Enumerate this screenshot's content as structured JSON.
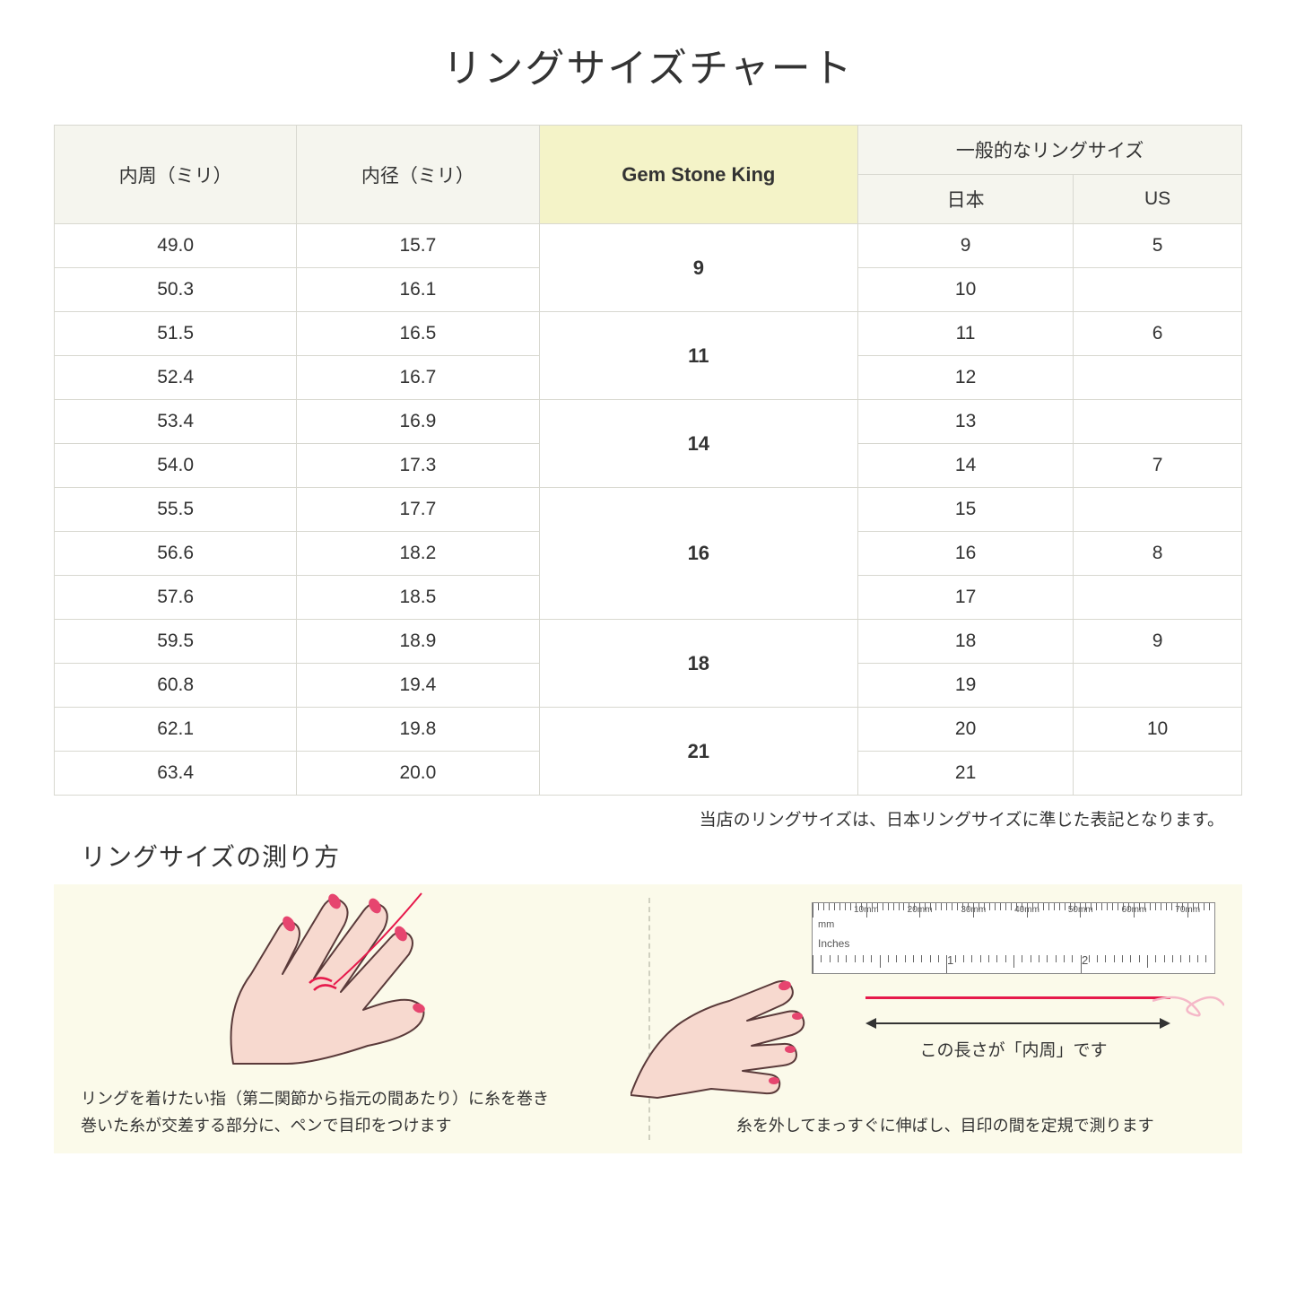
{
  "title": "リングサイズチャート",
  "table": {
    "headers": {
      "circumference": "内周（ミリ）",
      "diameter": "内径（ミリ）",
      "gsk": "Gem Stone King",
      "common_group": "一般的なリングサイズ",
      "japan": "日本",
      "us": "US"
    },
    "groups": [
      {
        "gsk": "9",
        "rows": [
          {
            "c": "49.0",
            "d": "15.7",
            "jp": "9",
            "us": "5"
          },
          {
            "c": "50.3",
            "d": "16.1",
            "jp": "10",
            "us": ""
          }
        ]
      },
      {
        "gsk": "11",
        "rows": [
          {
            "c": "51.5",
            "d": "16.5",
            "jp": "11",
            "us": "6"
          },
          {
            "c": "52.4",
            "d": "16.7",
            "jp": "12",
            "us": ""
          }
        ]
      },
      {
        "gsk": "14",
        "rows": [
          {
            "c": "53.4",
            "d": "16.9",
            "jp": "13",
            "us": ""
          },
          {
            "c": "54.0",
            "d": "17.3",
            "jp": "14",
            "us": "7"
          }
        ]
      },
      {
        "gsk": "16",
        "rows": [
          {
            "c": "55.5",
            "d": "17.7",
            "jp": "15",
            "us": ""
          },
          {
            "c": "56.6",
            "d": "18.2",
            "jp": "16",
            "us": "8"
          },
          {
            "c": "57.6",
            "d": "18.5",
            "jp": "17",
            "us": ""
          }
        ]
      },
      {
        "gsk": "18",
        "rows": [
          {
            "c": "59.5",
            "d": "18.9",
            "jp": "18",
            "us": "9"
          },
          {
            "c": "60.8",
            "d": "19.4",
            "jp": "19",
            "us": ""
          }
        ]
      },
      {
        "gsk": "21",
        "rows": [
          {
            "c": "62.1",
            "d": "19.8",
            "jp": "20",
            "us": "10"
          },
          {
            "c": "63.4",
            "d": "20.0",
            "jp": "21",
            "us": ""
          }
        ]
      }
    ]
  },
  "note": "当店のリングサイズは、日本リングサイズに準じた表記となります。",
  "how_to_title": "リングサイズの測り方",
  "instruction_left": "リングを着けたい指（第二関節から指元の間あたり）に糸を巻き\n巻いた糸が交差する部分に、ペンで目印をつけます",
  "instruction_right": "糸を外してまっすぐに伸ばし、目印の間を定規で測ります",
  "ruler": {
    "mm_marks": [
      "10mm",
      "20mm",
      "30mm",
      "40mm",
      "50mm",
      "60mm",
      "70mm"
    ],
    "mm_label": "mm",
    "inch_label": "Inches",
    "inch_numbers": [
      "1",
      "2"
    ]
  },
  "arrow_label": "この長さが「内周」です",
  "colors": {
    "header_bg": "#f5f5ee",
    "gsk_bg": "#f4f3c8",
    "border": "#d8d8d0",
    "panel_bg": "#fbfaea",
    "hand_fill": "#f7d9cf",
    "hand_stroke": "#5a3a3a",
    "nail": "#e6456f",
    "thread": "#e6194b"
  }
}
